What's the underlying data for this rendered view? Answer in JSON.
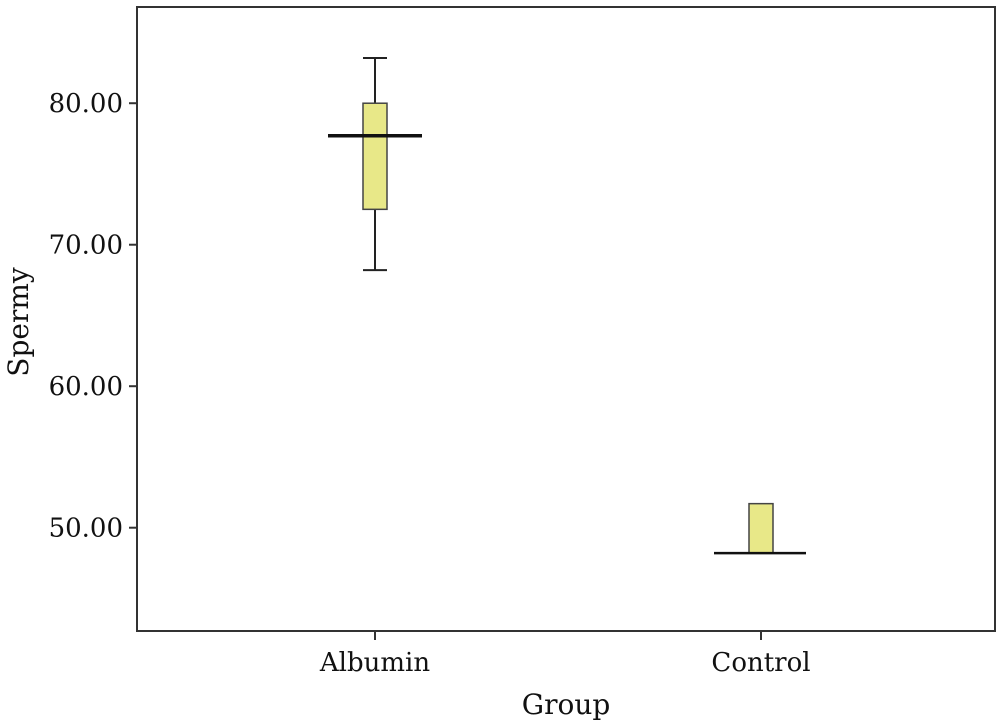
{
  "chart_data": {
    "type": "box",
    "xlabel": "Group",
    "ylabel": "Spermy",
    "categories": [
      "Albumin",
      "Control"
    ],
    "boxes": [
      {
        "category": "Albumin",
        "whisker_low": 68.2,
        "q1": 72.5,
        "median": 77.7,
        "q3": 80.0,
        "whisker_high": 83.2
      },
      {
        "category": "Control",
        "whisker_low": 48.2,
        "q1": 48.2,
        "median": 48.2,
        "q3": 51.7,
        "whisker_high": 51.7
      }
    ],
    "ylim": [
      42.7,
      86.8
    ],
    "yticks": [
      50,
      60,
      70,
      80
    ],
    "ytick_labels": [
      "50.00",
      "60.00",
      "70.00",
      "80.00"
    ],
    "box_color": "#e8e888",
    "grid": false
  }
}
